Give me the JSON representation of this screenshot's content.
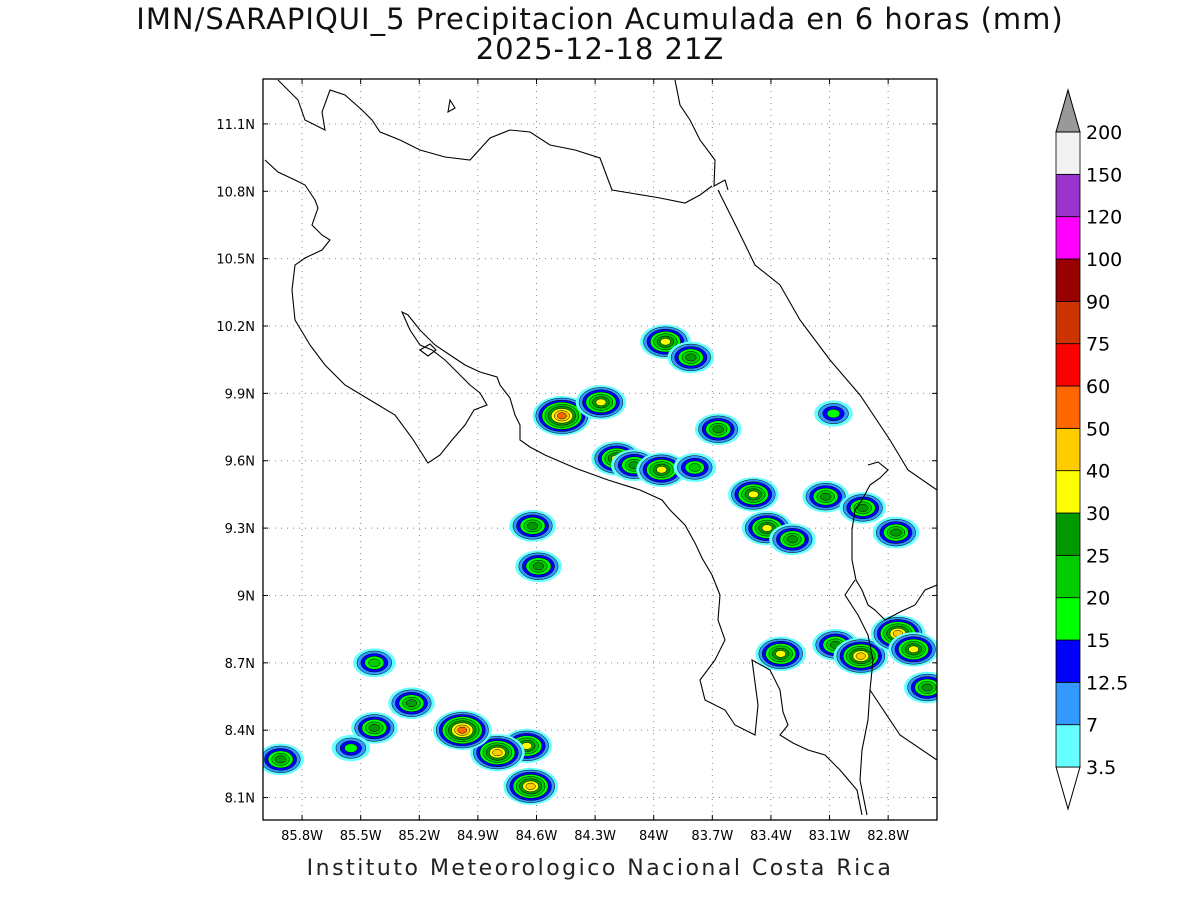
{
  "title": {
    "line1": "IMN/SARAPIQUI_5 Precipitacion Acumulada en 6 horas (mm)",
    "line2": "2025-12-18 21Z"
  },
  "footer": "Instituto Meteorologico Nacional Costa Rica",
  "map": {
    "lon_range": [
      -86.0,
      -82.55
    ],
    "lat_range": [
      8.0,
      11.3
    ],
    "lat_ticks": [
      "11.1N",
      "10.8N",
      "10.5N",
      "10.2N",
      "9.9N",
      "9.6N",
      "9.3N",
      "9N",
      "8.7N",
      "8.4N",
      "8.1N"
    ],
    "lon_ticks": [
      "85.8W",
      "85.5W",
      "85.2W",
      "84.9W",
      "84.6W",
      "84.3W",
      "84W",
      "83.7W",
      "83.4W",
      "83.1W",
      "82.8W"
    ],
    "grid": "dotted"
  },
  "colorbar": {
    "levels": [
      "3.5",
      "7",
      "12.5",
      "15",
      "20",
      "25",
      "30",
      "40",
      "50",
      "60",
      "75",
      "90",
      "100",
      "120",
      "150",
      "200"
    ],
    "colors": [
      "#66ffff",
      "#3399ff",
      "#0000ff",
      "#00ff00",
      "#00cc00",
      "#009900",
      "#ffff00",
      "#ffcc00",
      "#ff6600",
      "#ff0000",
      "#cc3300",
      "#990000",
      "#ff00ff",
      "#9933cc",
      "#f2f2f2",
      "#999999"
    ]
  },
  "precip_cells": [
    {
      "lon": -84.47,
      "lat": 9.8,
      "max": 50
    },
    {
      "lon": -84.27,
      "lat": 9.86,
      "max": 30
    },
    {
      "lon": -83.94,
      "lat": 10.13,
      "max": 30
    },
    {
      "lon": -83.81,
      "lat": 10.06,
      "max": 25
    },
    {
      "lon": -84.19,
      "lat": 9.61,
      "max": 30
    },
    {
      "lon": -84.1,
      "lat": 9.58,
      "max": 25
    },
    {
      "lon": -83.96,
      "lat": 9.56,
      "max": 30
    },
    {
      "lon": -83.79,
      "lat": 9.57,
      "max": 20
    },
    {
      "lon": -83.67,
      "lat": 9.74,
      "max": 25
    },
    {
      "lon": -83.49,
      "lat": 9.45,
      "max": 30
    },
    {
      "lon": -83.42,
      "lat": 9.3,
      "max": 30
    },
    {
      "lon": -83.29,
      "lat": 9.25,
      "max": 25
    },
    {
      "lon": -83.12,
      "lat": 9.44,
      "max": 25
    },
    {
      "lon": -82.93,
      "lat": 9.39,
      "max": 25
    },
    {
      "lon": -82.76,
      "lat": 9.28,
      "max": 25
    },
    {
      "lon": -83.35,
      "lat": 8.74,
      "max": 30
    },
    {
      "lon": -83.07,
      "lat": 8.78,
      "max": 25
    },
    {
      "lon": -82.94,
      "lat": 8.73,
      "max": 40
    },
    {
      "lon": -82.75,
      "lat": 8.83,
      "max": 40
    },
    {
      "lon": -82.67,
      "lat": 8.76,
      "max": 30
    },
    {
      "lon": -82.6,
      "lat": 8.59,
      "max": 25
    },
    {
      "lon": -84.62,
      "lat": 9.31,
      "max": 25
    },
    {
      "lon": -84.59,
      "lat": 9.13,
      "max": 25
    },
    {
      "lon": -83.08,
      "lat": 9.81,
      "max": 15
    },
    {
      "lon": -84.63,
      "lat": 8.15,
      "max": 40
    },
    {
      "lon": -84.65,
      "lat": 8.33,
      "max": 30
    },
    {
      "lon": -84.8,
      "lat": 8.3,
      "max": 40
    },
    {
      "lon": -84.98,
      "lat": 8.4,
      "max": 50
    },
    {
      "lon": -85.91,
      "lat": 8.27,
      "max": 25
    },
    {
      "lon": -85.43,
      "lat": 8.41,
      "max": 25
    },
    {
      "lon": -85.24,
      "lat": 8.52,
      "max": 25
    },
    {
      "lon": -85.43,
      "lat": 8.7,
      "max": 20
    },
    {
      "lon": -85.55,
      "lat": 8.32,
      "max": 15
    }
  ]
}
